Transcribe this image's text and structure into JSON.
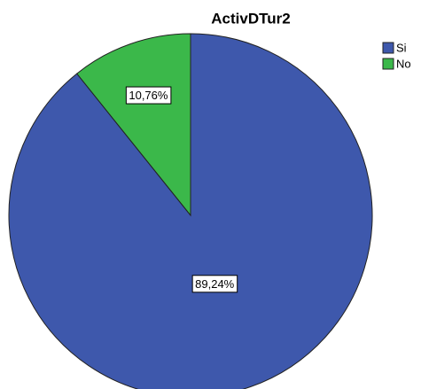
{
  "chart_data": {
    "type": "pie",
    "title": "ActivDTur2",
    "categories": [
      "Si",
      "No"
    ],
    "values": [
      89.24,
      10.76
    ],
    "value_labels": [
      "89,24%",
      "10,76%"
    ],
    "colors": [
      "#3e58ac",
      "#3bb84a"
    ],
    "legend": "top-right"
  }
}
